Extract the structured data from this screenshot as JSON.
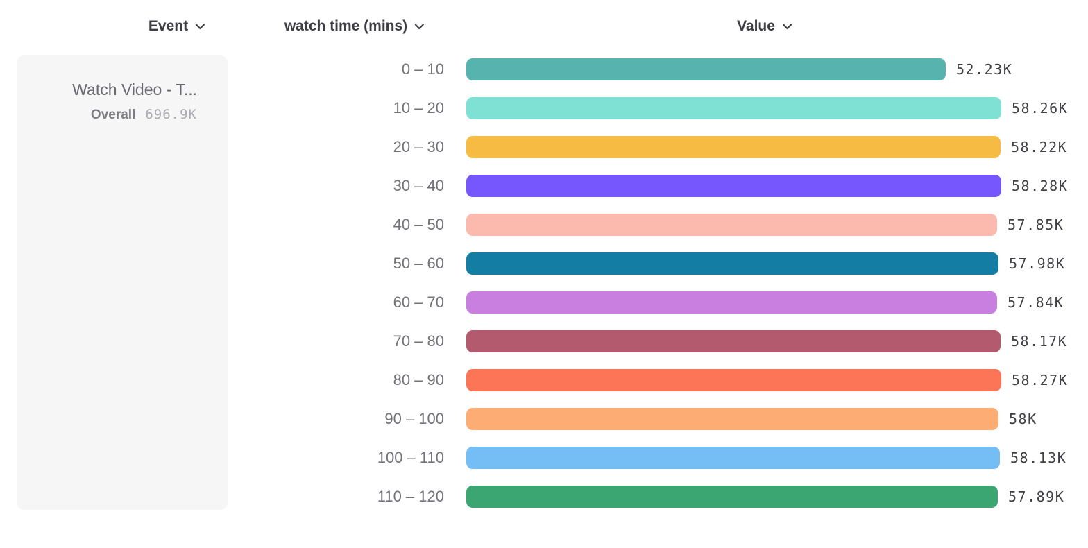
{
  "header": {
    "event_label": "Event",
    "breakdown_label": "watch time (mins)",
    "value_label": "Value"
  },
  "event_card": {
    "title": "Watch Video - T...",
    "overall_label": "Overall",
    "overall_value": "696.9K"
  },
  "chart_data": {
    "type": "bar",
    "orientation": "horizontal",
    "title": "",
    "xlabel": "Value",
    "ylabel": "watch time (mins)",
    "xlim": [
      0,
      58280
    ],
    "grid": false,
    "legend": false,
    "categories": [
      "0 – 10",
      "10 – 20",
      "20 – 30",
      "30 – 40",
      "40 – 50",
      "50 – 60",
      "60 – 70",
      "70 – 80",
      "80 – 90",
      "90 – 100",
      "100 – 110",
      "110 – 120"
    ],
    "values": [
      52230,
      58260,
      58220,
      58280,
      57850,
      57980,
      57840,
      58170,
      58270,
      58000,
      58130,
      57890
    ],
    "value_labels": [
      "52.23K",
      "58.26K",
      "58.22K",
      "58.28K",
      "57.85K",
      "57.98K",
      "57.84K",
      "58.17K",
      "58.27K",
      "58K",
      "58.13K",
      "57.89K"
    ],
    "colors": [
      "#57b3ae",
      "#7fe0d4",
      "#f6bb42",
      "#7656fd",
      "#fcb9ad",
      "#147da4",
      "#c97fe0",
      "#b35a6e",
      "#fd7557",
      "#fdad74",
      "#75bdf5",
      "#3ca673"
    ],
    "series_name": "Watch Video - T...",
    "overall_total": "696.9K"
  },
  "icons": {
    "chevron_color": "#3d3d43"
  }
}
